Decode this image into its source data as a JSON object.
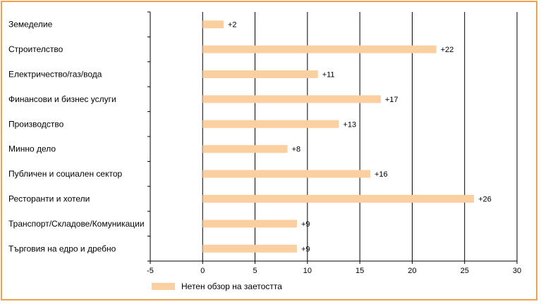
{
  "chart_data": {
    "type": "bar",
    "orientation": "horizontal",
    "categories": [
      "Земеделие",
      "Строителство",
      "Електричество/газ/вода",
      "Финансови и бизнес услуги",
      "Производство",
      "Минно дело",
      "Публичен и социален сектор",
      "Ресторанти и хотели",
      "Транспорт/Складове/Комуникации",
      "Търговия на едро и дребно"
    ],
    "series": [
      {
        "name": "Нетен обзор на заетостта",
        "values": [
          2,
          22.3,
          11,
          17,
          13,
          8.1,
          16,
          25.9,
          9,
          9
        ],
        "data_labels": [
          "+2",
          "+22",
          "+11",
          "+17",
          "+13",
          "+8",
          "+16",
          "+26",
          "+9",
          "+9"
        ],
        "color": "#fbcf9f"
      }
    ],
    "xlim": [
      -5,
      30
    ],
    "xticks": [
      -5,
      0,
      5,
      10,
      15,
      20,
      25,
      30
    ],
    "xtick_labels": [
      "-5",
      "0",
      "5",
      "10",
      "15",
      "20",
      "25",
      "30"
    ],
    "grid": "vertical",
    "legend_position": "bottom-left",
    "frame_color": "#f0a24a"
  }
}
